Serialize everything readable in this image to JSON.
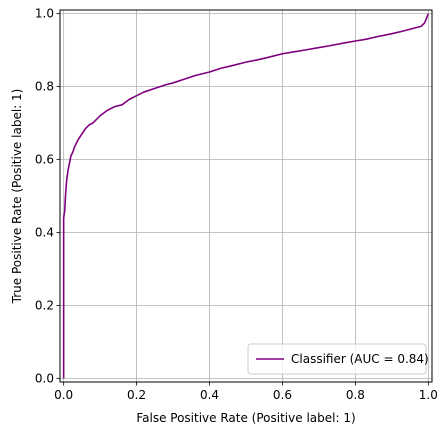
{
  "chart_data": {
    "type": "line",
    "title": "",
    "xlabel": "False Positive Rate (Positive label: 1)",
    "ylabel": "True Positive Rate (Positive label: 1)",
    "xlim": [
      -0.01,
      1.01
    ],
    "ylim": [
      -0.01,
      1.01
    ],
    "xticks": [
      0.0,
      0.2,
      0.4,
      0.6,
      0.8,
      1.0
    ],
    "yticks": [
      0.0,
      0.2,
      0.4,
      0.6,
      0.8,
      1.0
    ],
    "xtick_labels": [
      "0.0",
      "0.2",
      "0.4",
      "0.6",
      "0.8",
      "1.0"
    ],
    "ytick_labels": [
      "0.0",
      "0.2",
      "0.4",
      "0.6",
      "0.8",
      "1.0"
    ],
    "grid": true,
    "legend_position": "bottom-right",
    "series": [
      {
        "name": "Classifier (AUC = 0.84)",
        "color": "#800080",
        "x": [
          0.0,
          0.0,
          0.003,
          0.005,
          0.008,
          0.012,
          0.016,
          0.02,
          0.025,
          0.03,
          0.035,
          0.04,
          0.05,
          0.06,
          0.07,
          0.08,
          0.09,
          0.1,
          0.12,
          0.14,
          0.16,
          0.18,
          0.2,
          0.22,
          0.25,
          0.28,
          0.3,
          0.33,
          0.36,
          0.4,
          0.43,
          0.46,
          0.5,
          0.53,
          0.56,
          0.6,
          0.63,
          0.66,
          0.7,
          0.73,
          0.76,
          0.8,
          0.83,
          0.86,
          0.9,
          0.93,
          0.96,
          0.98,
          0.99,
          1.0
        ],
        "y": [
          0.0,
          0.44,
          0.46,
          0.5,
          0.54,
          0.57,
          0.59,
          0.61,
          0.62,
          0.635,
          0.645,
          0.655,
          0.67,
          0.685,
          0.695,
          0.7,
          0.71,
          0.72,
          0.735,
          0.745,
          0.75,
          0.765,
          0.775,
          0.785,
          0.795,
          0.805,
          0.81,
          0.82,
          0.83,
          0.84,
          0.85,
          0.857,
          0.867,
          0.873,
          0.88,
          0.89,
          0.895,
          0.9,
          0.907,
          0.912,
          0.918,
          0.925,
          0.93,
          0.937,
          0.945,
          0.952,
          0.96,
          0.965,
          0.975,
          1.0
        ]
      }
    ]
  }
}
